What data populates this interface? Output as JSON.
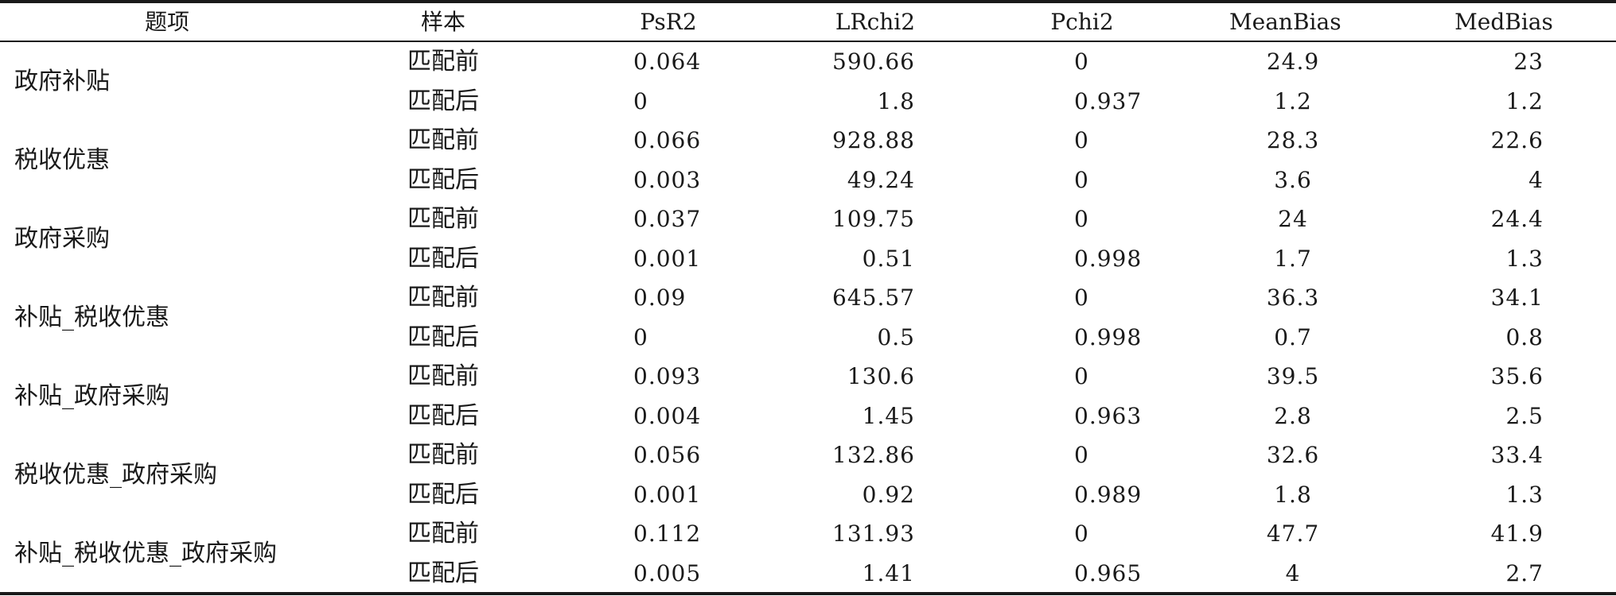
{
  "headers": {
    "item": "题项",
    "sample": "样本",
    "psr2": "PsR2",
    "lrchi2": "LRchi2",
    "pchi2": "Pchi2",
    "meanbias": "MeanBias",
    "medbias": "MedBias"
  },
  "groups": [
    {
      "item": "政府补贴",
      "rows": [
        {
          "sample": "匹配前",
          "psr2": "0.064",
          "lrchi2": "590.66",
          "pchi2": "0",
          "meanbias": "24.9",
          "medbias": "23"
        },
        {
          "sample": "匹配后",
          "psr2": "0",
          "lrchi2": "1.8",
          "pchi2": "0.937",
          "meanbias": "1.2",
          "medbias": "1.2"
        }
      ]
    },
    {
      "item": "税收优惠",
      "rows": [
        {
          "sample": "匹配前",
          "psr2": "0.066",
          "lrchi2": "928.88",
          "pchi2": "0",
          "meanbias": "28.3",
          "medbias": "22.6"
        },
        {
          "sample": "匹配后",
          "psr2": "0.003",
          "lrchi2": "49.24",
          "pchi2": "0",
          "meanbias": "3.6",
          "medbias": "4"
        }
      ]
    },
    {
      "item": "政府采购",
      "rows": [
        {
          "sample": "匹配前",
          "psr2": "0.037",
          "lrchi2": "109.75",
          "pchi2": "0",
          "meanbias": "24",
          "medbias": "24.4"
        },
        {
          "sample": "匹配后",
          "psr2": "0.001",
          "lrchi2": "0.51",
          "pchi2": "0.998",
          "meanbias": "1.7",
          "medbias": "1.3"
        }
      ]
    },
    {
      "item": "补贴_税收优惠",
      "rows": [
        {
          "sample": "匹配前",
          "psr2": "0.09",
          "lrchi2": "645.57",
          "pchi2": "0",
          "meanbias": "36.3",
          "medbias": "34.1"
        },
        {
          "sample": "匹配后",
          "psr2": "0",
          "lrchi2": "0.5",
          "pchi2": "0.998",
          "meanbias": "0.7",
          "medbias": "0.8"
        }
      ]
    },
    {
      "item": "补贴_政府采购",
      "rows": [
        {
          "sample": "匹配前",
          "psr2": "0.093",
          "lrchi2": "130.6",
          "pchi2": "0",
          "meanbias": "39.5",
          "medbias": "35.6"
        },
        {
          "sample": "匹配后",
          "psr2": "0.004",
          "lrchi2": "1.45",
          "pchi2": "0.963",
          "meanbias": "2.8",
          "medbias": "2.5"
        }
      ]
    },
    {
      "item": "税收优惠_政府采购",
      "rows": [
        {
          "sample": "匹配前",
          "psr2": "0.056",
          "lrchi2": "132.86",
          "pchi2": "0",
          "meanbias": "32.6",
          "medbias": "33.4"
        },
        {
          "sample": "匹配后",
          "psr2": "0.001",
          "lrchi2": "0.92",
          "pchi2": "0.989",
          "meanbias": "1.8",
          "medbias": "1.3"
        }
      ]
    },
    {
      "item": "补贴_税收优惠_政府采购",
      "rows": [
        {
          "sample": "匹配前",
          "psr2": "0.112",
          "lrchi2": "131.93",
          "pchi2": "0",
          "meanbias": "47.7",
          "medbias": "41.9"
        },
        {
          "sample": "匹配后",
          "psr2": "0.005",
          "lrchi2": "1.41",
          "pchi2": "0.965",
          "meanbias": "4",
          "medbias": "2.7"
        }
      ]
    }
  ]
}
